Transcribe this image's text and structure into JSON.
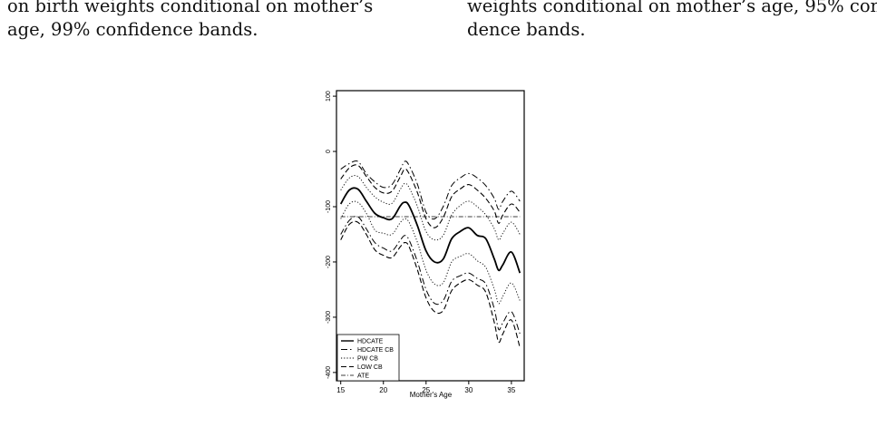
{
  "captions": {
    "left": {
      "line1": "on birth weights conditional on mother’s",
      "line2": "age, 99% confidence bands."
    },
    "right": {
      "line1": "weights conditional on mother’s age, 95% confi-",
      "line2": "dence bands."
    }
  },
  "chart_data": {
    "type": "line",
    "title": "",
    "xlabel": "Mother's Age",
    "ylabel": "",
    "xlim": [
      14.5,
      36.5
    ],
    "ylim": [
      -415,
      110
    ],
    "xticks": [
      15,
      20,
      25,
      30,
      35
    ],
    "yticks": [
      100,
      0,
      -100,
      -200,
      -300,
      -400
    ],
    "grid": false,
    "legend_position": "bottom-left",
    "legend": [
      "HDCATE",
      "HDCATE CB",
      "PW CB",
      "LOW CB",
      "ATE"
    ],
    "x": [
      15,
      16,
      17,
      18,
      19,
      20,
      21,
      22,
      22.5,
      23,
      24,
      25,
      26,
      27,
      28,
      29,
      30,
      31,
      32,
      33,
      33.5,
      34,
      35,
      36
    ],
    "series": [
      {
        "name": "HDCATE",
        "style": "solid",
        "values": [
          -95,
          -70,
          -68,
          -90,
          -112,
          -120,
          -122,
          -98,
          -92,
          -98,
          -135,
          -180,
          -200,
          -195,
          -158,
          -145,
          -138,
          -152,
          -158,
          -195,
          -215,
          -205,
          -182,
          -220
        ]
      },
      {
        "style": "dashdot",
        "values": [
          -32,
          -22,
          -18,
          -40,
          -55,
          -65,
          -60,
          -32,
          -18,
          -25,
          -60,
          -110,
          -122,
          -100,
          -62,
          -48,
          -40,
          -48,
          -62,
          -85,
          -105,
          -90,
          -72,
          -90
        ]
      },
      {
        "style": "dashdot",
        "values": [
          -150,
          -125,
          -118,
          -140,
          -165,
          -175,
          -180,
          -160,
          -152,
          -160,
          -200,
          -250,
          -275,
          -270,
          -235,
          -225,
          -220,
          -230,
          -240,
          -285,
          -322,
          -310,
          -290,
          -330
        ]
      },
      {
        "style": "dotted",
        "values": [
          -70,
          -48,
          -45,
          -65,
          -82,
          -92,
          -94,
          -68,
          -58,
          -65,
          -100,
          -145,
          -160,
          -152,
          -115,
          -98,
          -90,
          -100,
          -115,
          -140,
          -160,
          -148,
          -128,
          -150
        ]
      },
      {
        "style": "dotted",
        "values": [
          -122,
          -95,
          -92,
          -112,
          -142,
          -148,
          -150,
          -128,
          -122,
          -128,
          -165,
          -215,
          -240,
          -238,
          -200,
          -190,
          -185,
          -198,
          -210,
          -250,
          -275,
          -262,
          -238,
          -270
        ]
      },
      {
        "style": "dashed",
        "values": [
          -50,
          -30,
          -25,
          -45,
          -65,
          -75,
          -72,
          -45,
          -32,
          -40,
          -75,
          -122,
          -138,
          -120,
          -82,
          -68,
          -60,
          -70,
          -85,
          -108,
          -130,
          -115,
          -95,
          -110
        ]
      },
      {
        "style": "dashed",
        "values": [
          -160,
          -132,
          -128,
          -150,
          -178,
          -188,
          -192,
          -172,
          -165,
          -172,
          -215,
          -265,
          -290,
          -288,
          -252,
          -238,
          -232,
          -242,
          -255,
          -310,
          -345,
          -330,
          -305,
          -355
        ]
      },
      {
        "name": "ATE",
        "style": "dashdot-thin",
        "values": [
          -118,
          -118,
          -118,
          -118,
          -118,
          -118,
          -118,
          -118,
          -118,
          -118,
          -118,
          -118,
          -118,
          -118,
          -118,
          -118,
          -118,
          -118,
          -118,
          -118,
          -118,
          -118,
          -118,
          -118
        ]
      }
    ]
  }
}
